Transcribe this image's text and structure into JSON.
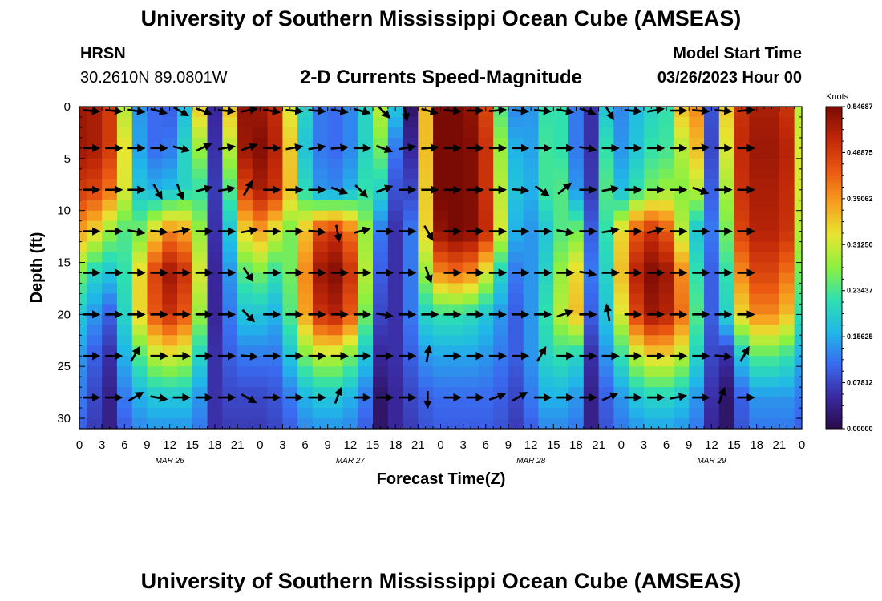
{
  "page": {
    "title": "University of Southern Mississippi Ocean Cube (AMSEAS)",
    "title_repeat": "University of Southern Mississippi Ocean Cube (AMSEAS)",
    "station_name": "HRSN",
    "station_coords": "30.2610N  89.0801W",
    "subtitle": "2-D Currents Speed-Magnitude",
    "model_start_label": "Model Start Time",
    "model_start_value": "03/26/2023 Hour 00"
  },
  "chart_data": {
    "type": "heatmap",
    "title": "2-D Currents Speed-Magnitude",
    "xlabel": "Forecast Time(Z)",
    "ylabel": "Depth (ft)",
    "xlim": [
      0,
      96
    ],
    "ylim": [
      31,
      0
    ],
    "x_ticks": [
      0,
      3,
      6,
      9,
      12,
      15,
      18,
      21,
      24,
      27,
      30,
      33,
      36,
      39,
      42,
      45,
      48,
      51,
      54,
      57,
      60,
      63,
      66,
      69,
      72,
      75,
      78,
      81,
      84,
      87,
      90,
      93,
      96
    ],
    "x_tick_labels": [
      "0",
      "3",
      "6",
      "9",
      "12",
      "15",
      "18",
      "21",
      "0",
      "3",
      "6",
      "9",
      "12",
      "15",
      "18",
      "21",
      "0",
      "3",
      "6",
      "9",
      "12",
      "15",
      "18",
      "21",
      "0",
      "3",
      "6",
      "9",
      "12",
      "15",
      "18",
      "21",
      "0"
    ],
    "y_ticks": [
      0,
      5,
      10,
      15,
      20,
      25,
      30
    ],
    "y_tick_labels": [
      "0",
      "5",
      "10",
      "15",
      "20",
      "25",
      "30"
    ],
    "date_labels": [
      {
        "hour": 12,
        "text": "MAR 26"
      },
      {
        "hour": 36,
        "text": "MAR 27"
      },
      {
        "hour": 60,
        "text": "MAR 28"
      },
      {
        "hour": 84,
        "text": "MAR 29"
      }
    ],
    "colorbar": {
      "unit": "Knots",
      "min": 0.0,
      "max": 0.546875,
      "tick_values": [
        0.0,
        0.078125,
        0.15625,
        0.234375,
        0.3125,
        0.390625,
        0.46875,
        0.546875
      ],
      "tick_labels": [
        "0.00000",
        "0.07812",
        "0.15625",
        "0.23437",
        "0.31250",
        "0.39062",
        "0.46875",
        "0.54687"
      ]
    },
    "colors": [
      "#2a0a4a",
      "#3a2aa0",
      "#3a6af0",
      "#20b8e8",
      "#2ee0b0",
      "#8cf040",
      "#e6e632",
      "#f7a020",
      "#ea5812",
      "#c02808",
      "#7a0a04"
    ],
    "speed_layers": [
      {
        "depth": 0,
        "speeds": [
          0.52,
          0.51,
          0.47,
          0.3,
          0.14,
          0.11,
          0.1,
          0.17,
          0.35,
          0.05,
          0.36,
          0.53,
          0.52,
          0.49,
          0.32,
          0.2,
          0.12,
          0.11,
          0.13,
          0.2,
          0.3,
          0.18,
          0.02,
          0.36,
          0.55,
          0.55,
          0.53,
          0.46,
          0.24,
          0.13,
          0.14,
          0.22,
          0.22,
          0.12,
          0.06,
          0.18,
          0.13,
          0.17,
          0.2,
          0.22,
          0.36,
          0.4,
          0.09,
          0.35,
          0.48,
          0.51,
          0.51,
          0.48,
          0.3
        ]
      },
      {
        "depth": 4,
        "speeds": [
          0.52,
          0.51,
          0.47,
          0.33,
          0.15,
          0.11,
          0.12,
          0.2,
          0.28,
          0.06,
          0.3,
          0.52,
          0.54,
          0.5,
          0.35,
          0.18,
          0.12,
          0.11,
          0.13,
          0.2,
          0.26,
          0.12,
          0.05,
          0.36,
          0.55,
          0.56,
          0.54,
          0.48,
          0.28,
          0.16,
          0.15,
          0.23,
          0.22,
          0.12,
          0.06,
          0.22,
          0.14,
          0.18,
          0.22,
          0.23,
          0.3,
          0.36,
          0.08,
          0.32,
          0.49,
          0.52,
          0.52,
          0.5,
          0.32
        ]
      },
      {
        "depth": 8,
        "speeds": [
          0.47,
          0.46,
          0.42,
          0.32,
          0.18,
          0.16,
          0.17,
          0.2,
          0.22,
          0.07,
          0.24,
          0.46,
          0.51,
          0.48,
          0.36,
          0.21,
          0.14,
          0.13,
          0.16,
          0.22,
          0.2,
          0.09,
          0.08,
          0.35,
          0.55,
          0.56,
          0.54,
          0.48,
          0.3,
          0.18,
          0.16,
          0.23,
          0.24,
          0.14,
          0.07,
          0.24,
          0.17,
          0.22,
          0.26,
          0.28,
          0.27,
          0.3,
          0.1,
          0.29,
          0.48,
          0.51,
          0.51,
          0.49,
          0.32
        ]
      },
      {
        "depth": 12,
        "speeds": [
          0.38,
          0.34,
          0.28,
          0.24,
          0.26,
          0.34,
          0.4,
          0.38,
          0.28,
          0.06,
          0.18,
          0.34,
          0.38,
          0.32,
          0.26,
          0.36,
          0.46,
          0.48,
          0.42,
          0.28,
          0.12,
          0.06,
          0.12,
          0.34,
          0.53,
          0.55,
          0.54,
          0.49,
          0.32,
          0.16,
          0.14,
          0.18,
          0.24,
          0.26,
          0.1,
          0.22,
          0.34,
          0.44,
          0.48,
          0.44,
          0.3,
          0.18,
          0.12,
          0.26,
          0.46,
          0.5,
          0.5,
          0.48,
          0.3
        ]
      },
      {
        "depth": 16,
        "speeds": [
          0.26,
          0.2,
          0.18,
          0.22,
          0.34,
          0.46,
          0.52,
          0.48,
          0.32,
          0.05,
          0.14,
          0.24,
          0.26,
          0.22,
          0.26,
          0.4,
          0.52,
          0.54,
          0.48,
          0.3,
          0.1,
          0.06,
          0.12,
          0.28,
          0.4,
          0.42,
          0.4,
          0.32,
          0.2,
          0.12,
          0.14,
          0.2,
          0.28,
          0.34,
          0.12,
          0.2,
          0.36,
          0.5,
          0.54,
          0.52,
          0.4,
          0.22,
          0.1,
          0.22,
          0.4,
          0.46,
          0.46,
          0.42,
          0.26
        ]
      },
      {
        "depth": 20,
        "speeds": [
          0.18,
          0.14,
          0.1,
          0.2,
          0.34,
          0.44,
          0.48,
          0.44,
          0.28,
          0.05,
          0.12,
          0.18,
          0.18,
          0.16,
          0.24,
          0.38,
          0.48,
          0.5,
          0.44,
          0.26,
          0.08,
          0.06,
          0.12,
          0.2,
          0.22,
          0.22,
          0.21,
          0.18,
          0.14,
          0.1,
          0.14,
          0.22,
          0.3,
          0.36,
          0.1,
          0.18,
          0.32,
          0.46,
          0.52,
          0.5,
          0.42,
          0.24,
          0.1,
          0.2,
          0.34,
          0.4,
          0.4,
          0.36,
          0.22
        ]
      },
      {
        "depth": 24,
        "speeds": [
          0.14,
          0.1,
          0.06,
          0.16,
          0.24,
          0.3,
          0.32,
          0.3,
          0.2,
          0.06,
          0.1,
          0.12,
          0.12,
          0.12,
          0.18,
          0.26,
          0.3,
          0.3,
          0.26,
          0.18,
          0.05,
          0.06,
          0.1,
          0.14,
          0.15,
          0.15,
          0.15,
          0.14,
          0.12,
          0.1,
          0.14,
          0.2,
          0.22,
          0.2,
          0.06,
          0.14,
          0.22,
          0.3,
          0.34,
          0.34,
          0.3,
          0.2,
          0.08,
          0.06,
          0.18,
          0.24,
          0.24,
          0.22,
          0.16
        ]
      },
      {
        "depth": 28,
        "speeds": [
          0.12,
          0.08,
          0.04,
          0.12,
          0.16,
          0.18,
          0.18,
          0.18,
          0.14,
          0.06,
          0.08,
          0.08,
          0.08,
          0.09,
          0.12,
          0.16,
          0.18,
          0.18,
          0.16,
          0.12,
          0.02,
          0.05,
          0.08,
          0.1,
          0.11,
          0.11,
          0.11,
          0.11,
          0.1,
          0.08,
          0.12,
          0.16,
          0.16,
          0.14,
          0.04,
          0.1,
          0.14,
          0.18,
          0.2,
          0.2,
          0.18,
          0.14,
          0.06,
          0.02,
          0.1,
          0.14,
          0.14,
          0.14,
          0.12
        ]
      },
      {
        "depth": 31,
        "speeds": [
          0.1,
          0.07,
          0.04,
          0.1,
          0.13,
          0.14,
          0.14,
          0.14,
          0.12,
          0.06,
          0.07,
          0.07,
          0.07,
          0.08,
          0.1,
          0.13,
          0.14,
          0.14,
          0.13,
          0.1,
          0.02,
          0.05,
          0.07,
          0.09,
          0.1,
          0.1,
          0.1,
          0.1,
          0.09,
          0.07,
          0.1,
          0.13,
          0.13,
          0.12,
          0.04,
          0.09,
          0.12,
          0.14,
          0.15,
          0.15,
          0.14,
          0.12,
          0.05,
          0.02,
          0.09,
          0.12,
          0.12,
          0.12,
          0.1
        ]
      }
    ],
    "vector_hours": [
      0,
      3,
      6,
      9,
      12,
      15,
      18,
      21,
      24,
      27,
      30,
      33,
      36,
      39,
      42,
      45,
      48,
      51,
      54,
      57,
      60,
      63,
      66,
      69,
      72,
      75,
      78,
      81,
      84,
      87
    ],
    "vector_depths": [
      0,
      4,
      8,
      12,
      16,
      20,
      24,
      28
    ],
    "vector_directions_deg": [
      [
        5,
        5,
        8,
        15,
        30,
        20,
        5,
        -10,
        10,
        5,
        5,
        10,
        15,
        45,
        80,
        15,
        5,
        0,
        -5,
        5,
        5,
        10,
        20,
        60,
        5,
        -10,
        0,
        5,
        5,
        -5
      ],
      [
        0,
        0,
        0,
        0,
        15,
        -25,
        -10,
        -20,
        0,
        -10,
        -10,
        -5,
        0,
        20,
        -10,
        -5,
        0,
        0,
        0,
        0,
        0,
        0,
        10,
        0,
        0,
        0,
        0,
        -5,
        0,
        0
      ],
      [
        0,
        0,
        0,
        60,
        70,
        -15,
        -10,
        -60,
        0,
        0,
        0,
        20,
        45,
        -20,
        0,
        0,
        0,
        0,
        0,
        5,
        35,
        -40,
        0,
        -10,
        0,
        0,
        0,
        20,
        0,
        0
      ],
      [
        0,
        0,
        10,
        5,
        -10,
        0,
        0,
        -10,
        0,
        0,
        5,
        80,
        -15,
        0,
        0,
        60,
        0,
        0,
        0,
        0,
        0,
        10,
        0,
        -10,
        0,
        -15,
        0,
        0,
        0,
        0
      ],
      [
        0,
        0,
        0,
        0,
        0,
        0,
        0,
        55,
        0,
        0,
        0,
        0,
        0,
        0,
        0,
        70,
        0,
        0,
        0,
        0,
        0,
        0,
        10,
        0,
        0,
        0,
        0,
        0,
        0,
        0
      ],
      [
        0,
        0,
        0,
        0,
        0,
        0,
        0,
        45,
        0,
        0,
        0,
        0,
        0,
        10,
        0,
        0,
        0,
        0,
        0,
        0,
        0,
        -20,
        0,
        -100,
        0,
        0,
        0,
        0,
        0,
        0
      ],
      [
        0,
        0,
        -60,
        0,
        0,
        0,
        0,
        5,
        0,
        0,
        0,
        0,
        0,
        0,
        0,
        -80,
        0,
        0,
        0,
        0,
        -60,
        0,
        0,
        0,
        0,
        0,
        0,
        0,
        5,
        -60
      ],
      [
        0,
        0,
        -30,
        10,
        0,
        0,
        0,
        30,
        0,
        0,
        0,
        -70,
        0,
        0,
        0,
        90,
        0,
        0,
        -20,
        -30,
        0,
        0,
        0,
        -25,
        0,
        0,
        -10,
        0,
        -70,
        0
      ]
    ]
  }
}
